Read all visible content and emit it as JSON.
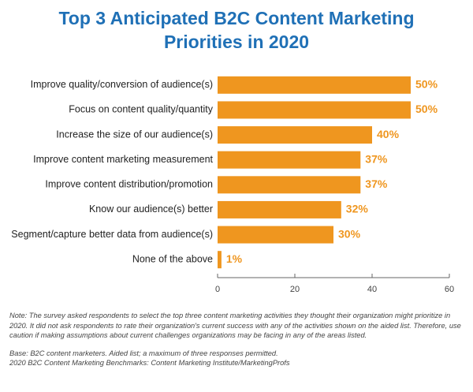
{
  "chart_data": {
    "type": "barh",
    "title": "Top 3 Anticipated B2C Content Marketing Priorities in 2020",
    "categories": [
      "Improve quality/conversion of audience(s)",
      "Focus on content quality/quantity",
      "Increase the size of our audience(s)",
      "Improve content marketing measurement",
      "Improve content distribution/promotion",
      "Know our audience(s) better",
      "Segment/capture better data from audience(s)",
      "None of the above"
    ],
    "values": [
      50,
      50,
      40,
      37,
      37,
      32,
      30,
      1
    ],
    "value_labels": [
      "50%",
      "50%",
      "40%",
      "37%",
      "37%",
      "32%",
      "30%",
      "1%"
    ],
    "color": "#ef961f",
    "xlim": [
      0,
      60
    ],
    "xticks": [
      0,
      20,
      40,
      60
    ],
    "grid": false,
    "note": "Note: The survey asked respondents to select the top three content marketing activities they thought their organization might prioritize in 2020. It did not ask respondents to rate their organization's current success with any of the activities shown on the aided list. Therefore, use caution if making assumptions about current challenges organizations may be facing in any of the areas listed.",
    "base": [
      "Base: B2C content marketers. Aided list; a maximum of three responses permitted.",
      "2020 B2C Content Marketing Benchmarks: Content Marketing Institute/MarketingProfs"
    ]
  }
}
